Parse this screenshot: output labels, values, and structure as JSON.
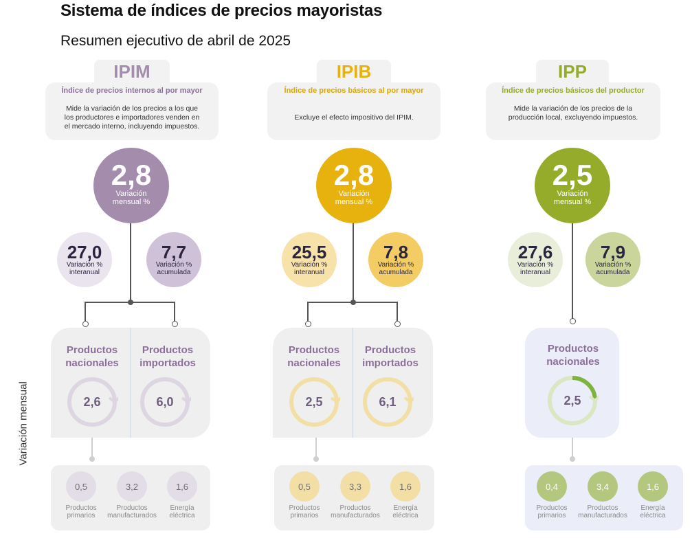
{
  "header": {
    "title": "Sistema de índices de precios mayoristas",
    "subtitle": "Resumen ejecutivo de abril de 2025"
  },
  "side_label": "Variación mensual",
  "colors": {
    "ipim": "#a48cac",
    "ipib": "#e8b20e",
    "ipp": "#94ac2a"
  },
  "indices": [
    {
      "code": "IPIM",
      "name": "Índice de precios internos al por mayor",
      "description": [
        "Mide la variación de los precios a los que",
        "los productores e importadores venden en",
        "el mercado interno, incluyendo impuestos."
      ],
      "monthly": {
        "value": "2,8",
        "label1": "Variación",
        "label2": "mensual %"
      },
      "interannual": {
        "value": "27,0",
        "label1": "Variación %",
        "label2": "interanual"
      },
      "accumulated": {
        "value": "7,7",
        "label1": "Variación %",
        "label2": "acumulada"
      },
      "products": [
        {
          "title1": "Productos",
          "title2": "nacionales",
          "value": "2,6"
        },
        {
          "title1": "Productos",
          "title2": "importados",
          "value": "6,0"
        }
      ],
      "breakdown": [
        {
          "value": "0,5",
          "label1": "Productos",
          "label2": "primarios"
        },
        {
          "value": "3,2",
          "label1": "Productos",
          "label2": "manufacturados"
        },
        {
          "value": "1,6",
          "label1": "Energía",
          "label2": "eléctrica"
        }
      ]
    },
    {
      "code": "IPIB",
      "name": "Índice de precios básicos al por mayor",
      "description": [
        "Excluye el efecto impositivo del IPIM."
      ],
      "monthly": {
        "value": "2,8",
        "label1": "Variación",
        "label2": "mensual %"
      },
      "interannual": {
        "value": "25,5",
        "label1": "Variación %",
        "label2": "interanual"
      },
      "accumulated": {
        "value": "7,8",
        "label1": "Variación %",
        "label2": "acumulada"
      },
      "products": [
        {
          "title1": "Productos",
          "title2": "nacionales",
          "value": "2,5"
        },
        {
          "title1": "Productos",
          "title2": "importados",
          "value": "6,1"
        }
      ],
      "breakdown": [
        {
          "value": "0,5",
          "label1": "Productos",
          "label2": "primarios"
        },
        {
          "value": "3,3",
          "label1": "Productos",
          "label2": "manufacturados"
        },
        {
          "value": "1,6",
          "label1": "Energía",
          "label2": "eléctrica"
        }
      ]
    },
    {
      "code": "IPP",
      "name": "Índice de precios básicos del productor",
      "description": [
        "Mide la variación de los precios de la",
        "producción local, excluyendo impuestos."
      ],
      "monthly": {
        "value": "2,5",
        "label1": "Variación",
        "label2": "mensual %"
      },
      "interannual": {
        "value": "27,6",
        "label1": "Variación %",
        "label2": "interanual"
      },
      "accumulated": {
        "value": "7,9",
        "label1": "Variación %",
        "label2": "acumulada"
      },
      "products": [
        {
          "title1": "Productos",
          "title2": "nacionales",
          "value": "2,5"
        }
      ],
      "breakdown": [
        {
          "value": "0,4",
          "label1": "Productos",
          "label2": "primarios"
        },
        {
          "value": "3,4",
          "label1": "Productos",
          "label2": "manufacturados"
        },
        {
          "value": "1,6",
          "label1": "Energía",
          "label2": "eléctrica"
        }
      ]
    }
  ]
}
